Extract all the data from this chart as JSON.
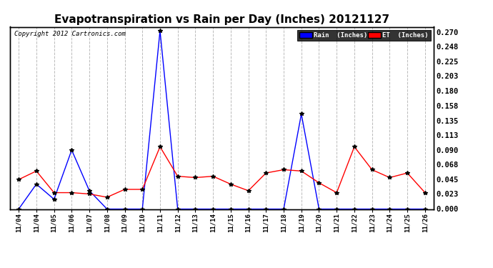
{
  "title": "Evapotranspiration vs Rain per Day (Inches) 20121127",
  "copyright": "Copyright 2012 Cartronics.com",
  "x_labels": [
    "11/04",
    "11/04",
    "11/05",
    "11/06",
    "11/07",
    "11/08",
    "11/09",
    "11/10",
    "11/11",
    "11/12",
    "11/13",
    "11/14",
    "11/15",
    "11/16",
    "11/17",
    "11/18",
    "11/19",
    "11/20",
    "11/21",
    "11/22",
    "11/23",
    "11/24",
    "11/25",
    "11/26"
  ],
  "rain_values": [
    0.0,
    0.038,
    0.015,
    0.09,
    0.028,
    0.0,
    0.0,
    0.0,
    0.272,
    0.0,
    0.0,
    0.0,
    0.0,
    0.0,
    0.0,
    0.0,
    0.145,
    0.0,
    0.0,
    0.0,
    0.0,
    0.0,
    0.0,
    0.0
  ],
  "et_values": [
    0.045,
    0.058,
    0.025,
    0.025,
    0.023,
    0.018,
    0.03,
    0.03,
    0.095,
    0.05,
    0.048,
    0.05,
    0.038,
    0.028,
    0.055,
    0.06,
    0.058,
    0.04,
    0.025,
    0.095,
    0.06,
    0.048,
    0.055,
    0.025
  ],
  "rain_color": "#0000ff",
  "et_color": "#ff0000",
  "marker_color": "#000000",
  "background_color": "#ffffff",
  "grid_color": "#bbbbbb",
  "title_fontsize": 11,
  "ylabel_right_values": [
    0.0,
    0.023,
    0.045,
    0.068,
    0.09,
    0.113,
    0.135,
    0.158,
    0.18,
    0.203,
    0.225,
    0.248,
    0.27
  ],
  "ylim": [
    0.0,
    0.278
  ],
  "legend_rain_label": "Rain  (Inches)"
}
